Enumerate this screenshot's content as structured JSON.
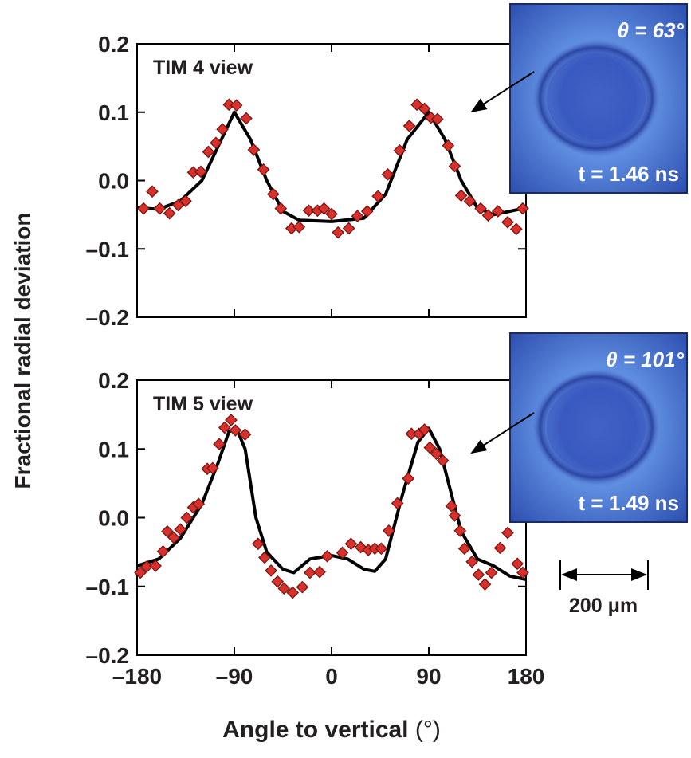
{
  "figure": {
    "ylabel": "Fractional radial deviation",
    "xlabel": "Angle to vertical",
    "xunit": "(°)",
    "scale_bar": "200 μm"
  },
  "chart_data": [
    {
      "type": "scatter",
      "annotation": "TIM 4 view",
      "inset": {
        "angle": "θ = 63°",
        "time": "t = 1.46 ns"
      },
      "xlim": [
        -180,
        180
      ],
      "ylim": [
        -0.2,
        0.2
      ],
      "xticks": [
        -180,
        -90,
        0,
        90,
        180
      ],
      "yticks": [
        {
          "value": -0.2,
          "label": "–0.2"
        },
        {
          "value": -0.1,
          "label": "–0.1"
        },
        {
          "value": 0,
          "label": "0.0"
        },
        0.1,
        0.2
      ],
      "series": [
        {
          "type": "scatter",
          "color": "#d9302c",
          "x": [
            -174,
            -166,
            -159,
            -150,
            -142,
            -135,
            -128,
            -121,
            -114,
            -107,
            -101,
            -95,
            -88,
            -79,
            -72,
            -63,
            -54,
            -47,
            -37,
            -30,
            -21,
            -13,
            -7,
            0,
            6,
            16,
            24,
            33,
            43,
            52,
            63,
            72,
            79,
            86,
            92,
            98,
            108,
            114,
            120,
            128,
            138,
            145,
            154,
            163,
            171,
            177
          ],
          "values": [
            -0.041,
            -0.016,
            -0.041,
            -0.048,
            -0.036,
            -0.03,
            0.012,
            0.013,
            0.042,
            0.055,
            0.075,
            0.111,
            0.11,
            0.091,
            0.045,
            0.016,
            -0.02,
            -0.041,
            -0.07,
            -0.068,
            -0.044,
            -0.044,
            -0.041,
            -0.049,
            -0.076,
            -0.07,
            -0.052,
            -0.045,
            -0.023,
            0.009,
            0.044,
            0.08,
            0.111,
            0.105,
            0.092,
            0.09,
            0.051,
            0.021,
            -0.022,
            -0.03,
            -0.041,
            -0.051,
            -0.045,
            -0.061,
            -0.071,
            -0.041
          ]
        },
        {
          "type": "line",
          "color": "#000000",
          "x": [
            -180,
            -160,
            -140,
            -120,
            -105,
            -90,
            -75,
            -60,
            -45,
            -30,
            0,
            30,
            50,
            70,
            90,
            105,
            120,
            135,
            150,
            180
          ],
          "values": [
            -0.04,
            -0.042,
            -0.03,
            0.0,
            0.05,
            0.1,
            0.06,
            0.0,
            -0.045,
            -0.058,
            -0.06,
            -0.055,
            -0.02,
            0.06,
            0.1,
            0.06,
            0.0,
            -0.04,
            -0.05,
            -0.04
          ]
        }
      ]
    },
    {
      "type": "scatter",
      "annotation": "TIM 5 view",
      "inset": {
        "angle": "θ = 101°",
        "time": "t = 1.49 ns"
      },
      "xlim": [
        -180,
        180
      ],
      "ylim": [
        -0.2,
        0.2
      ],
      "xticks": [
        {
          "value": -180,
          "label": "–180"
        },
        {
          "value": -90,
          "label": "–90"
        },
        0,
        90,
        180
      ],
      "yticks": [
        {
          "value": -0.2,
          "label": "–0.2"
        },
        {
          "value": -0.1,
          "label": "–0.1"
        },
        {
          "value": 0,
          "label": "0.0"
        },
        0.1,
        0.2
      ],
      "series": [
        {
          "type": "scatter",
          "color": "#d9302c",
          "x": [
            -177,
            -171,
            -163,
            -156,
            -152,
            -146,
            -140,
            -134,
            -128,
            -123,
            -115,
            -110,
            -104,
            -99,
            -93,
            -89,
            -80,
            -68,
            -62,
            -56,
            -50,
            -44,
            -36,
            -27,
            -20,
            -11,
            -4,
            10,
            18,
            27,
            34,
            40,
            46,
            53,
            61,
            71,
            74,
            81,
            86,
            91,
            97,
            103,
            111,
            114,
            119,
            123,
            130,
            136,
            142,
            148,
            156,
            163,
            172,
            177
          ],
          "values": [
            -0.08,
            -0.071,
            -0.07,
            -0.049,
            -0.02,
            -0.029,
            -0.017,
            0.0,
            0.015,
            0.02,
            0.071,
            0.072,
            0.107,
            0.131,
            0.142,
            0.127,
            0.121,
            -0.038,
            -0.058,
            -0.077,
            -0.093,
            -0.103,
            -0.109,
            -0.101,
            -0.08,
            -0.079,
            -0.056,
            -0.051,
            -0.038,
            -0.043,
            -0.047,
            -0.045,
            -0.045,
            -0.019,
            0.021,
            0.057,
            0.122,
            0.122,
            0.128,
            0.102,
            0.093,
            0.083,
            0.017,
            0.003,
            -0.019,
            -0.045,
            -0.064,
            -0.083,
            -0.097,
            -0.08,
            -0.044,
            -0.022,
            -0.067,
            -0.08
          ]
        },
        {
          "type": "line",
          "color": "#000000",
          "x": [
            -180,
            -160,
            -140,
            -120,
            -105,
            -95,
            -88,
            -80,
            -70,
            -60,
            -45,
            -35,
            -20,
            0,
            15,
            30,
            40,
            50,
            65,
            80,
            90,
            100,
            110,
            120,
            135,
            150,
            165,
            180
          ],
          "values": [
            -0.07,
            -0.06,
            -0.03,
            0.02,
            0.08,
            0.125,
            0.13,
            0.1,
            0.0,
            -0.05,
            -0.075,
            -0.08,
            -0.06,
            -0.055,
            -0.06,
            -0.075,
            -0.078,
            -0.06,
            0.03,
            0.11,
            0.13,
            0.1,
            0.04,
            -0.02,
            -0.06,
            -0.07,
            -0.085,
            -0.09
          ]
        }
      ]
    }
  ]
}
